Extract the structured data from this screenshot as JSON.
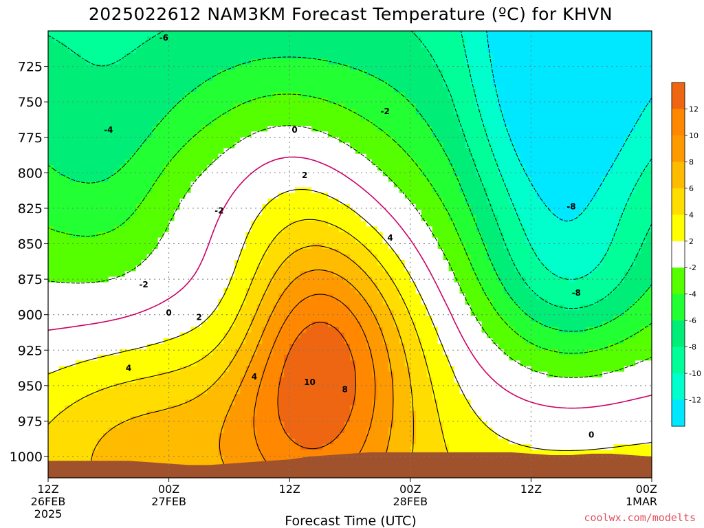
{
  "title": "2025022612 NAM3KM Forecast Temperature (ºC) for KHVN",
  "credit": "coolwx.com/modelts",
  "colors": {
    "c_m14_m12": "#00e8ff",
    "c_m12_m10": "#00ffcc",
    "c_m10_m8": "#00ff99",
    "c_m8_m6": "#00ee77",
    "c_m6_m4": "#22ff33",
    "c_m4_m2": "#55ff00",
    "c_m2_2": "#ffffff",
    "c_2_4": "#ffff00",
    "c_4_6": "#ffdd00",
    "c_6_8": "#ffbb00",
    "c_8_10": "#ff9900",
    "c_10_12": "#ff8800",
    "c_12_14": "#ee6611",
    "ground": "#a0522d",
    "zero_line": "#cc0066",
    "contour": "#000000",
    "grid": "#777777"
  },
  "chart_data": {
    "type": "heatmap",
    "title": "2025022612 NAM3KM Forecast Temperature (ºC) for KHVN",
    "xlabel": "Forecast Time (UTC)",
    "ylabel": "",
    "x_ticks": [
      {
        "hour": 0,
        "label": "12Z",
        "sub": [
          "26FEB",
          "2025"
        ]
      },
      {
        "hour": 12,
        "label": "00Z",
        "sub": [
          "27FEB"
        ]
      },
      {
        "hour": 24,
        "label": "12Z",
        "sub": []
      },
      {
        "hour": 36,
        "label": "00Z",
        "sub": [
          "28FEB"
        ]
      },
      {
        "hour": 48,
        "label": "12Z",
        "sub": []
      },
      {
        "hour": 60,
        "label": "00Z",
        "sub": [
          "1MAR"
        ]
      }
    ],
    "xlim": [
      0,
      60
    ],
    "ylim": [
      700,
      1015
    ],
    "y_ticks": [
      725,
      750,
      775,
      800,
      825,
      850,
      875,
      900,
      925,
      950,
      975,
      1000
    ],
    "grid": true,
    "colorbar": {
      "ticks": [
        12,
        10,
        8,
        6,
        4,
        2,
        -2,
        -4,
        -6,
        -8,
        -10,
        -12
      ],
      "levels": [
        -14,
        -12,
        -10,
        -8,
        -6,
        -4,
        -2,
        2,
        4,
        6,
        8,
        10,
        12,
        14
      ]
    },
    "contour_labels": [
      {
        "t": 11.5,
        "p": 705,
        "v": "-6"
      },
      {
        "t": 6.0,
        "p": 770,
        "v": "-4"
      },
      {
        "t": 33.5,
        "p": 757,
        "v": "-2"
      },
      {
        "t": 17.0,
        "p": 827,
        "v": "-2"
      },
      {
        "t": 9.5,
        "p": 879,
        "v": "-2"
      },
      {
        "t": 24.5,
        "p": 770,
        "v": "0"
      },
      {
        "t": 12.0,
        "p": 899,
        "v": "0"
      },
      {
        "t": 54.0,
        "p": 985,
        "v": "0"
      },
      {
        "t": 25.5,
        "p": 802,
        "v": "2"
      },
      {
        "t": 15.0,
        "p": 902,
        "v": "2"
      },
      {
        "t": 34.0,
        "p": 846,
        "v": "4"
      },
      {
        "t": 8.0,
        "p": 938,
        "v": "4"
      },
      {
        "t": 20.5,
        "p": 944,
        "v": "4"
      },
      {
        "t": 29.5,
        "p": 953,
        "v": "8"
      },
      {
        "t": 26.0,
        "p": 948,
        "v": "10"
      },
      {
        "t": 52.0,
        "p": 824,
        "v": "-8"
      },
      {
        "t": 52.5,
        "p": 885,
        "v": "-8"
      }
    ],
    "terrain_pressure": [
      [
        0,
        1003
      ],
      [
        4,
        1003
      ],
      [
        8,
        1003
      ],
      [
        10,
        1004
      ],
      [
        12,
        1005
      ],
      [
        14,
        1006
      ],
      [
        16,
        1006
      ],
      [
        18,
        1005
      ],
      [
        20,
        1004
      ],
      [
        22,
        1003
      ],
      [
        24,
        1002
      ],
      [
        26,
        1000
      ],
      [
        28,
        999
      ],
      [
        30,
        998
      ],
      [
        32,
        997
      ],
      [
        34,
        997
      ],
      [
        36,
        997
      ],
      [
        38,
        997
      ],
      [
        40,
        997
      ],
      [
        42,
        997
      ],
      [
        44,
        997
      ],
      [
        46,
        997
      ],
      [
        48,
        998
      ],
      [
        50,
        999
      ],
      [
        52,
        999
      ],
      [
        54,
        998
      ],
      [
        56,
        998
      ],
      [
        58,
        999
      ],
      [
        60,
        1000
      ]
    ],
    "field_model": "Approximate temperature field (ºC) over forecast hour (0-60) and pressure (hPa 700-1015), reconstructed from the contour pattern: warm tongue up to ~13ºC near hour 26 / 920 hPa, cold air up to -12ºC near hour 50 / 720 hPa, freezing line between."
  }
}
